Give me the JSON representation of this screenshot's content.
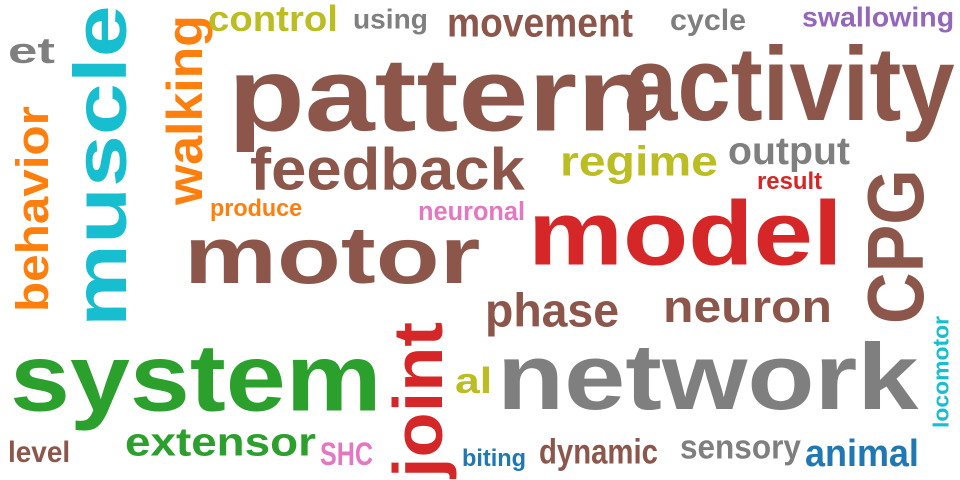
{
  "words": [
    {
      "text": "pattern",
      "color": "#8c564b",
      "rotated": false
    },
    {
      "text": "activity",
      "color": "#8c564b",
      "rotated": false
    },
    {
      "text": "network",
      "color": "#7f7f7f",
      "rotated": false
    },
    {
      "text": "system",
      "color": "#2ca02c",
      "rotated": false
    },
    {
      "text": "motor",
      "color": "#8c564b",
      "rotated": false
    },
    {
      "text": "model",
      "color": "#d62728",
      "rotated": false
    },
    {
      "text": "muscle",
      "color": "#17becf",
      "rotated": true
    },
    {
      "text": "CPG",
      "color": "#8c564b",
      "rotated": true
    },
    {
      "text": "feedback",
      "color": "#8c564b",
      "rotated": false
    },
    {
      "text": "joint",
      "color": "#d62728",
      "rotated": true
    },
    {
      "text": "movement",
      "color": "#8c564b",
      "rotated": false
    },
    {
      "text": "extensor",
      "color": "#2ca02c",
      "rotated": false
    },
    {
      "text": "neuron",
      "color": "#8c564b",
      "rotated": false
    },
    {
      "text": "phase",
      "color": "#8c564b",
      "rotated": false
    },
    {
      "text": "walking",
      "color": "#ff7f0e",
      "rotated": true
    },
    {
      "text": "behavior",
      "color": "#ff7f0e",
      "rotated": true
    },
    {
      "text": "control",
      "color": "#bcbd22",
      "rotated": false
    },
    {
      "text": "regime",
      "color": "#bcbd22",
      "rotated": false
    },
    {
      "text": "output",
      "color": "#7f7f7f",
      "rotated": false
    },
    {
      "text": "animal",
      "color": "#1f77b4",
      "rotated": false
    },
    {
      "text": "dynamic",
      "color": "#8c564b",
      "rotated": false
    },
    {
      "text": "sensory",
      "color": "#7f7f7f",
      "rotated": false
    },
    {
      "text": "al",
      "color": "#bcbd22",
      "rotated": false
    },
    {
      "text": "et",
      "color": "#7f7f7f",
      "rotated": false
    },
    {
      "text": "using",
      "color": "#7f7f7f",
      "rotated": false
    },
    {
      "text": "cycle",
      "color": "#7f7f7f",
      "rotated": false
    },
    {
      "text": "swallowing",
      "color": "#9467bd",
      "rotated": false
    },
    {
      "text": "result",
      "color": "#d62728",
      "rotated": false
    },
    {
      "text": "produce",
      "color": "#ff7f0e",
      "rotated": false
    },
    {
      "text": "neuronal",
      "color": "#e377c2",
      "rotated": false
    },
    {
      "text": "locomotor",
      "color": "#17becf",
      "rotated": true
    },
    {
      "text": "level",
      "color": "#8c564b",
      "rotated": false
    },
    {
      "text": "SHC",
      "color": "#e377c2",
      "rotated": false
    },
    {
      "text": "biting",
      "color": "#1f77b4",
      "rotated": false
    }
  ]
}
